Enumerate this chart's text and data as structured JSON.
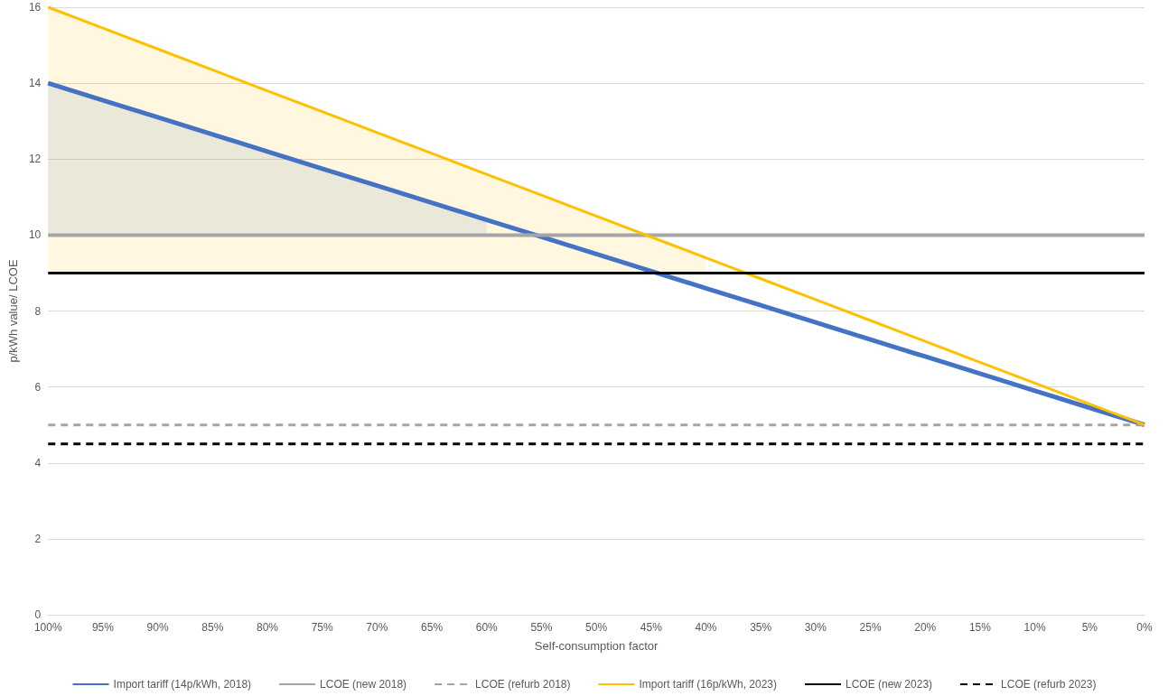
{
  "chart_data": {
    "type": "line",
    "xlabel": "Self-consumption factor",
    "ylabel": "p/kWh value/ LCOE",
    "categories": [
      "100%",
      "95%",
      "90%",
      "85%",
      "80%",
      "75%",
      "70%",
      "65%",
      "60%",
      "55%",
      "50%",
      "45%",
      "40%",
      "35%",
      "30%",
      "25%",
      "20%",
      "15%",
      "10%",
      "5%",
      "0%"
    ],
    "series": [
      {
        "name": "Import tariff (14p/kWh, 2018)",
        "color": "#4472c4",
        "line_style": "solid",
        "values": [
          14,
          13.55,
          13.1,
          12.65,
          12.2,
          11.75,
          11.3,
          10.85,
          10.4,
          9.95,
          9.5,
          9.05,
          8.6,
          8.15,
          7.7,
          7.25,
          6.8,
          6.35,
          5.9,
          5.45,
          5
        ],
        "lower": [
          10,
          10,
          10,
          10,
          10,
          10,
          10,
          10,
          10,
          null,
          null,
          null,
          null,
          null,
          null,
          null,
          null,
          null,
          null,
          null,
          null
        ],
        "upper": [
          14,
          13.55,
          13.1,
          12.65,
          12.2,
          11.75,
          11.3,
          10.85,
          10.4,
          null,
          null,
          null,
          null,
          null,
          null,
          null,
          null,
          null,
          null,
          null,
          null
        ]
      },
      {
        "name": "LCOE (new 2018)",
        "color": "#a5a5a5",
        "line_style": "solid",
        "values": [
          10,
          10,
          10,
          10,
          10,
          10,
          10,
          10,
          10,
          10,
          10,
          10,
          10,
          10,
          10,
          10,
          10,
          10,
          10,
          10,
          10
        ]
      },
      {
        "name": "LCOE (refurb 2018)",
        "color": "#a5a5a5",
        "line_style": "dashed",
        "values": [
          5,
          5,
          5,
          5,
          5,
          5,
          5,
          5,
          5,
          5,
          5,
          5,
          5,
          5,
          5,
          5,
          5,
          5,
          5,
          5,
          5
        ]
      },
      {
        "name": "Import tariff (16p/kWh, 2023)",
        "color": "#ffc000",
        "line_style": "solid",
        "values": [
          16,
          15.45,
          14.9,
          14.35,
          13.8,
          13.25,
          12.7,
          12.15,
          11.6,
          11.05,
          10.5,
          9.95,
          9.4,
          8.85,
          8.3,
          7.75,
          7.2,
          6.65,
          6.1,
          5.55,
          5
        ],
        "lower": [
          9,
          9,
          9,
          9,
          9,
          9,
          9,
          9,
          9,
          9,
          9,
          9,
          9,
          null,
          null,
          null,
          null,
          null,
          null,
          null,
          null
        ],
        "upper": [
          16,
          15.45,
          14.9,
          14.35,
          13.8,
          13.25,
          12.7,
          12.15,
          11.6,
          11.05,
          10.5,
          9.95,
          9.4,
          null,
          null,
          null,
          null,
          null,
          null,
          null,
          null
        ]
      },
      {
        "name": "LCOE (new 2023)",
        "color": "#000000",
        "line_style": "solid",
        "values": [
          9,
          9,
          9,
          9,
          9,
          9,
          9,
          9,
          9,
          9,
          9,
          9,
          9,
          9,
          9,
          9,
          9,
          9,
          9,
          9,
          9
        ]
      },
      {
        "name": "LCOE (refurb 2023)",
        "color": "#000000",
        "line_style": "dashed",
        "values": [
          4.5,
          4.5,
          4.5,
          4.5,
          4.5,
          4.5,
          4.5,
          4.5,
          4.5,
          4.5,
          4.5,
          4.5,
          4.5,
          4.5,
          4.5,
          4.5,
          4.5,
          4.5,
          4.5,
          4.5,
          4.5
        ]
      }
    ],
    "ylim": [
      0,
      16
    ],
    "yticks": [
      0,
      2,
      4,
      6,
      8,
      10,
      12,
      14,
      16
    ],
    "grid": "y",
    "legend": "bottom",
    "marker": "none"
  }
}
